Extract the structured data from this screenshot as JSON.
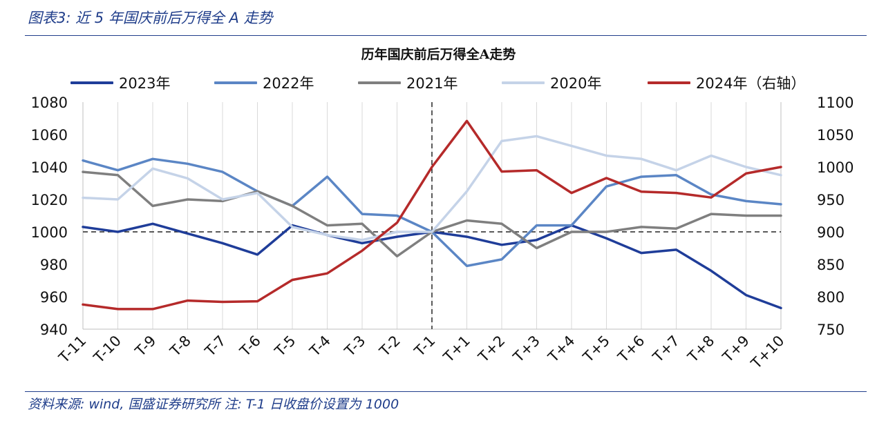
{
  "figure": {
    "title": "图表3:  近 5 年国庆前后万得全 A 走势",
    "source": "资料来源: wind, 国盛证券研究所   注: T-1 日收盘价设置为 1000"
  },
  "chart_data": {
    "type": "line",
    "title": "历年国庆前后万得全A走势",
    "categories": [
      "T-11",
      "T-10",
      "T-9",
      "T-8",
      "T-7",
      "T-6",
      "T-5",
      "T-4",
      "T-3",
      "T-2",
      "T-1",
      "T+1",
      "T+2",
      "T+3",
      "T+4",
      "T+5",
      "T+6",
      "T+7",
      "T+8",
      "T+9",
      "T+10"
    ],
    "ylim_left": [
      940,
      1080
    ],
    "yticks_left": [
      940,
      960,
      980,
      1000,
      1020,
      1040,
      1060,
      1080
    ],
    "ylim_right": [
      750,
      1100
    ],
    "yticks_right": [
      750,
      800,
      850,
      900,
      950,
      1000,
      1050,
      1100
    ],
    "reference_line_left": 1000,
    "reference_category": "T-1",
    "grid": "vertical",
    "legend_position": "top",
    "series": [
      {
        "name": "2023年",
        "axis": "left",
        "color": "#1f3d99",
        "values": [
          1003,
          1000,
          1005,
          999,
          993,
          986,
          1004,
          998,
          993,
          997,
          1000,
          997,
          992,
          995,
          1004,
          996,
          987,
          989,
          976,
          961,
          953
        ]
      },
      {
        "name": "2022年",
        "axis": "left",
        "color": "#5b86c5",
        "values": [
          1044,
          1038,
          1045,
          1042,
          1037,
          1025,
          1016,
          1034,
          1011,
          1010,
          1000,
          979,
          983,
          1004,
          1004,
          1028,
          1034,
          1035,
          1023,
          1019,
          1017
        ]
      },
      {
        "name": "2021年",
        "axis": "left",
        "color": "#7f7f7f",
        "values": [
          1037,
          1035,
          1016,
          1020,
          1019,
          1025,
          1016,
          1004,
          1005,
          985,
          1000,
          1007,
          1005,
          990,
          1000,
          1000,
          1003,
          1002,
          1011,
          1010,
          1010
        ]
      },
      {
        "name": "2020年",
        "axis": "left",
        "color": "#c5d3e8",
        "values": [
          1021,
          1020,
          1039,
          1033,
          1020,
          1024,
          1003,
          998,
          995,
          1000,
          1000,
          1025,
          1056,
          1059,
          1053,
          1047,
          1045,
          1038,
          1047,
          1040,
          1035
        ]
      },
      {
        "name": "2024年（右轴）",
        "axis": "right",
        "color": "#b52a2a",
        "values": [
          788,
          781,
          781,
          794,
          792,
          793,
          826,
          836,
          871,
          914,
          1000,
          1071,
          993,
          995,
          960,
          983,
          962,
          960,
          953,
          990,
          1000
        ]
      }
    ]
  }
}
